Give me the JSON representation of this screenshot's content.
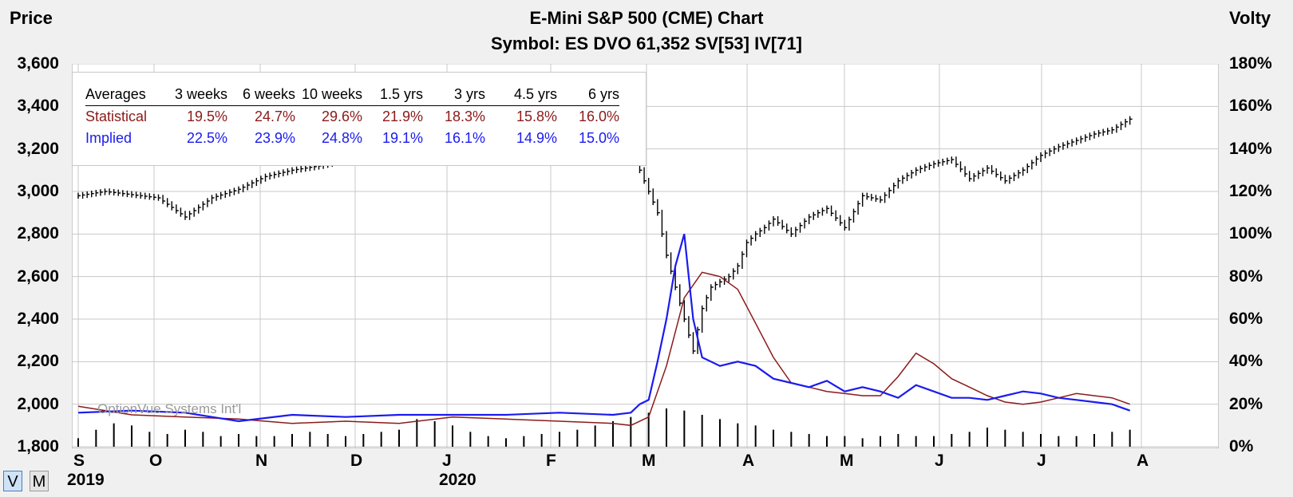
{
  "title": "E-Mini S&P 500 (CME) Chart",
  "subtitle": "Symbol: ES  DVO 61,352  SV[53]  IV[71]",
  "left_axis_title": "Price",
  "right_axis_title": "Volty",
  "watermark": "OptionVue Systems Int'l",
  "buttons": {
    "v": "V",
    "m": "M"
  },
  "colors": {
    "price": "#000000",
    "statistical": "#8b1a1a",
    "implied": "#1b1bef",
    "grid": "#c8c8c8",
    "volume": "#000000"
  },
  "stats_table": {
    "header": [
      "Averages",
      "3 weeks",
      "6 weeks",
      "10 weeks",
      "1.5 yrs",
      "3 yrs",
      "4.5 yrs",
      "6 yrs"
    ],
    "statistical": [
      "Statistical",
      "19.5%",
      "24.7%",
      "29.6%",
      "21.9%",
      "18.3%",
      "15.8%",
      "16.0%"
    ],
    "implied": [
      "Implied",
      "22.5%",
      "23.9%",
      "24.8%",
      "19.1%",
      "16.1%",
      "14.9%",
      "15.0%"
    ]
  },
  "chart_data": {
    "type": "line",
    "left_axis": {
      "ylim": [
        1800,
        3600
      ],
      "ticks": [
        "3,600",
        "3,400",
        "3,200",
        "3,000",
        "2,800",
        "2,600",
        "2,400",
        "2,200",
        "2,000",
        "1,800"
      ]
    },
    "right_axis": {
      "ylim": [
        0,
        180
      ],
      "ticks": [
        "180%",
        "160%",
        "140%",
        "120%",
        "100%",
        "80%",
        "60%",
        "40%",
        "20%",
        "0%"
      ]
    },
    "x_months": [
      "S",
      "O",
      "N",
      "D",
      "J",
      "F",
      "M",
      "A",
      "M",
      "J",
      "J",
      "A"
    ],
    "x_years": [
      "2019",
      "2020"
    ],
    "grid": true,
    "price_series": {
      "name": "Price",
      "x": [
        0,
        3,
        6,
        9,
        12,
        15,
        18,
        21,
        24,
        27,
        30,
        33,
        36,
        39,
        42,
        45,
        48,
        51,
        54,
        57,
        60,
        62.5,
        63,
        64,
        65,
        66,
        67,
        68,
        69,
        70,
        71,
        73,
        74,
        75,
        76,
        77,
        78,
        80,
        82,
        84,
        86,
        88,
        90,
        92,
        94,
        96,
        98,
        100,
        102,
        104,
        106,
        108,
        110,
        112,
        114,
        116,
        118
      ],
      "y": [
        2980,
        3000,
        2985,
        2970,
        2880,
        2970,
        3010,
        3070,
        3100,
        3120,
        3150,
        3190,
        3230,
        3250,
        3290,
        3320,
        3340,
        3350,
        3370,
        3380,
        3340,
        3200,
        3100,
        3000,
        2900,
        2700,
        2550,
        2400,
        2250,
        2450,
        2550,
        2600,
        2650,
        2760,
        2800,
        2830,
        2870,
        2800,
        2880,
        2920,
        2830,
        2980,
        2960,
        3050,
        3100,
        3130,
        3150,
        3060,
        3110,
        3050,
        3100,
        3170,
        3210,
        3240,
        3270,
        3290,
        3340
      ]
    },
    "series": [
      {
        "name": "Statistical",
        "x": [
          0,
          6,
          12,
          18,
          24,
          30,
          36,
          42,
          48,
          54,
          60,
          62,
          64,
          66,
          68,
          70,
          72,
          74,
          76,
          78,
          80,
          82,
          84,
          86,
          88,
          90,
          92,
          94,
          96,
          98,
          100,
          102,
          104,
          106,
          108,
          110,
          112,
          114,
          116,
          118
        ],
        "y": [
          19,
          15,
          14,
          13,
          11,
          12,
          11,
          14,
          13,
          12,
          11,
          10,
          14,
          38,
          70,
          82,
          80,
          74,
          58,
          42,
          30,
          28,
          26,
          25,
          24,
          24,
          33,
          44,
          39,
          32,
          28,
          24,
          21,
          20,
          21,
          23,
          25,
          24,
          23,
          20
        ]
      },
      {
        "name": "Implied",
        "x": [
          0,
          6,
          12,
          18,
          24,
          30,
          36,
          42,
          48,
          54,
          60,
          62,
          63,
          64,
          65,
          66,
          67,
          68,
          69,
          70,
          72,
          74,
          76,
          78,
          80,
          82,
          84,
          86,
          88,
          90,
          92,
          94,
          96,
          98,
          100,
          102,
          104,
          106,
          108,
          110,
          112,
          114,
          116,
          118
        ],
        "y": [
          16,
          17,
          16,
          12,
          15,
          14,
          15,
          15,
          15,
          16,
          15,
          16,
          20,
          22,
          40,
          60,
          85,
          100,
          60,
          42,
          38,
          40,
          38,
          32,
          30,
          28,
          31,
          26,
          28,
          26,
          23,
          29,
          26,
          23,
          23,
          22,
          24,
          26,
          25,
          23,
          22,
          21,
          20,
          17
        ]
      }
    ],
    "volume": {
      "unit": "%",
      "values": [
        4,
        8,
        11,
        10,
        7,
        6,
        8,
        7,
        5,
        6,
        5,
        5,
        6,
        7,
        6,
        5,
        6,
        7,
        8,
        13,
        12,
        10,
        7,
        5,
        4,
        5,
        6,
        7,
        8,
        10,
        12,
        14,
        16,
        18,
        17,
        15,
        13,
        11,
        10,
        8,
        7,
        6,
        5,
        5,
        4,
        5,
        6,
        5,
        5,
        6,
        7,
        9,
        8,
        7,
        6,
        5,
        5,
        6,
        7,
        8
      ]
    }
  }
}
